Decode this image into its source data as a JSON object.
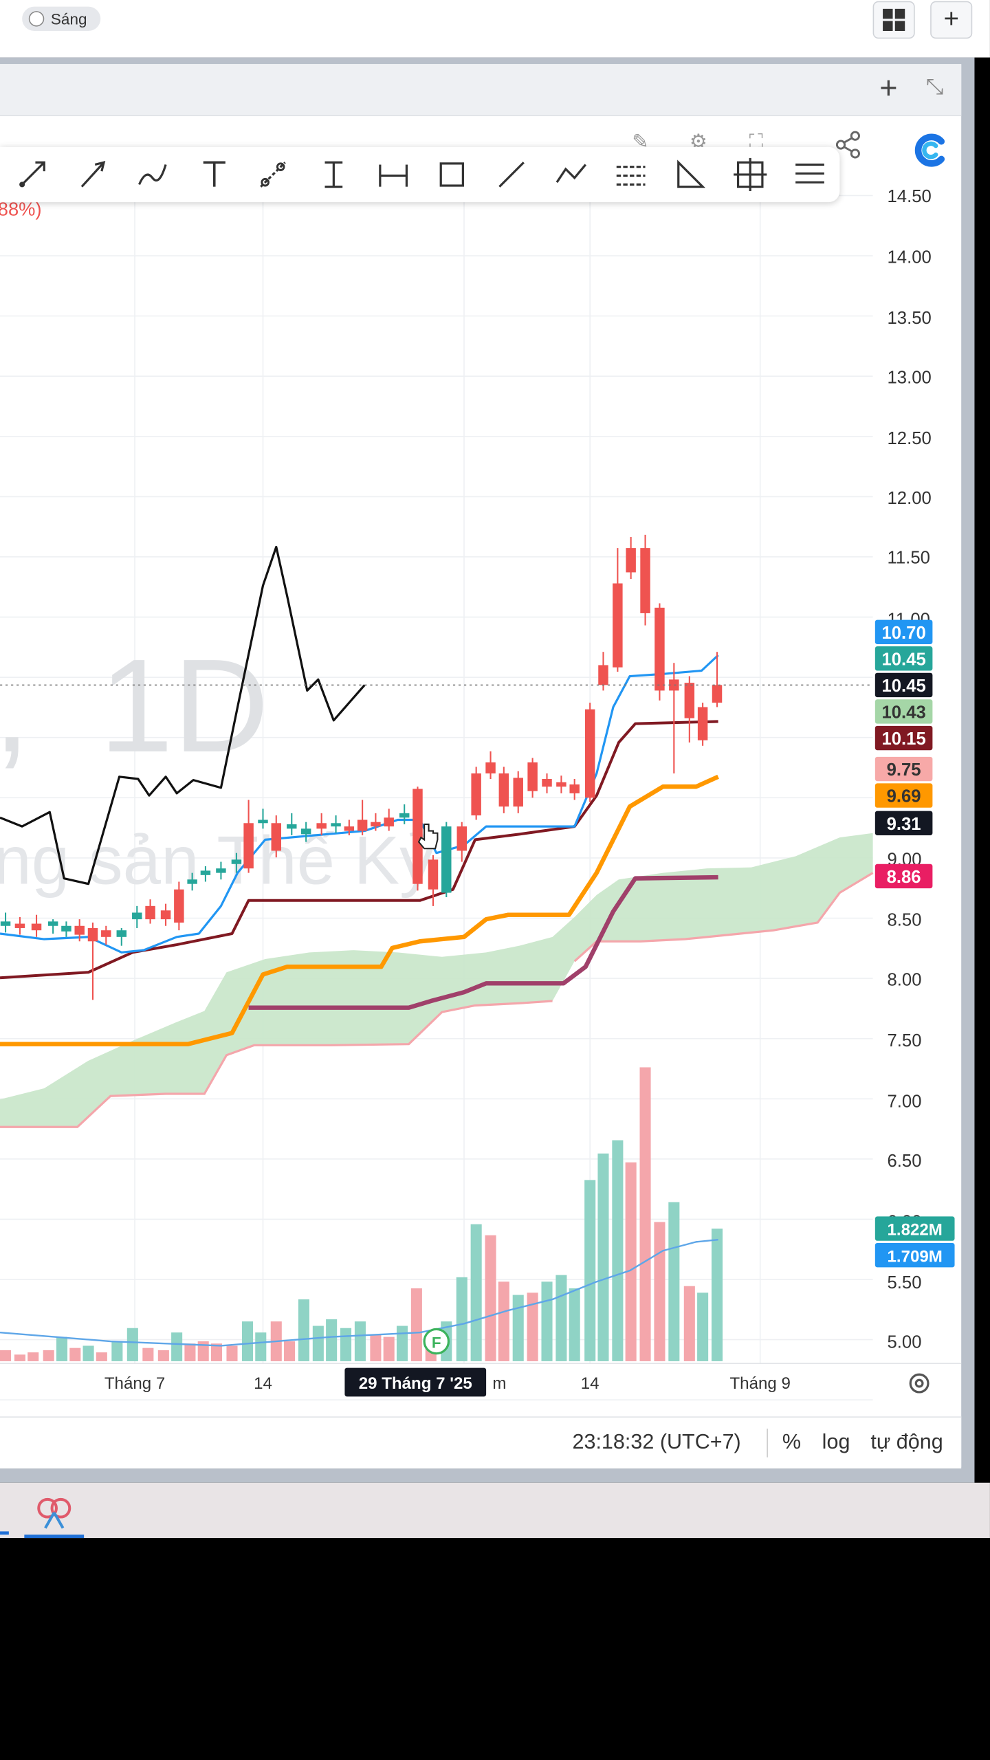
{
  "topbar": {
    "theme_toggle_label": "Sáng"
  },
  "toolbar": {
    "tools": [
      "arrow-draw",
      "arrow-line",
      "brush",
      "text",
      "trend-angle",
      "vertical-measure",
      "horizontal-measure",
      "rectangle",
      "line",
      "polyline",
      "channel",
      "triangle",
      "crosshair",
      "menu"
    ]
  },
  "chart": {
    "watermark": {
      "timeframe": "1D",
      "name": "ng sản Thế Kỷ"
    },
    "top_label": "88%)",
    "price_scale": [
      "14.50",
      "14.00",
      "13.50",
      "13.00",
      "12.50",
      "12.00",
      "11.50",
      "11.00",
      "9.00",
      "8.50",
      "8.00",
      "7.50",
      "7.00",
      "6.50",
      "6.00",
      "5.50",
      "5.00"
    ],
    "price_badges": [
      {
        "value": "10.70",
        "bg": "#2196f3",
        "fg": "#ffffff"
      },
      {
        "value": "10.45",
        "bg": "#26a69a",
        "fg": "#ffffff"
      },
      {
        "value": "10.45",
        "bg": "#131722",
        "fg": "#ffffff"
      },
      {
        "value": "10.43",
        "bg": "#a5d6a7",
        "fg": "#333333"
      },
      {
        "value": "10.15",
        "bg": "#801922",
        "fg": "#ffffff"
      },
      {
        "value": "9.75",
        "bg": "#f7a9a8",
        "fg": "#333333"
      },
      {
        "value": "9.69",
        "bg": "#ff9800",
        "fg": "#333333"
      },
      {
        "value": "9.31",
        "bg": "#131722",
        "fg": "#ffffff"
      },
      {
        "value": "8.86",
        "bg": "#e91e63",
        "fg": "#ffffff"
      }
    ],
    "volume_badges": [
      {
        "value": "1.822M",
        "bg": "#26a69a",
        "fg": "#ffffff"
      },
      {
        "value": "1.709M",
        "bg": "#2196f3",
        "fg": "#ffffff"
      }
    ],
    "time_axis": {
      "labels": [
        "Tháng 7",
        "14",
        "m",
        "14",
        "Tháng 9"
      ],
      "crosshair_date": "29 Tháng 7 '25"
    },
    "event_marker": "F",
    "colors": {
      "up": "#26a69a",
      "down": "#ef5350",
      "up_volume": "#8fd3c5",
      "down_volume": "#f4a6ab",
      "tenkan": "#2196f3",
      "kijun": "#801922",
      "orange": "#ff9800",
      "pink": "#e91e63"
    }
  },
  "bottombar": {
    "clock": "23:18:32 (UTC+7)",
    "percent": "%",
    "log": "log",
    "auto": "tự động"
  }
}
